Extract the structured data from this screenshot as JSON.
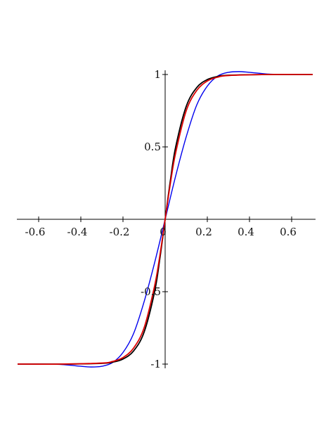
{
  "chart_data": {
    "type": "line",
    "title": "",
    "xlabel": "",
    "ylabel": "",
    "xlim": [
      -0.7,
      0.7
    ],
    "ylim": [
      -1.0,
      1.0
    ],
    "grid": false,
    "legend": "none",
    "x_ticks": [
      {
        "value": -0.6,
        "label": "-0.6"
      },
      {
        "value": -0.4,
        "label": "-0.4"
      },
      {
        "value": -0.2,
        "label": "-0.2"
      },
      {
        "value": 0.0,
        "label": "0"
      },
      {
        "value": 0.2,
        "label": "0.2"
      },
      {
        "value": 0.4,
        "label": "0.4"
      },
      {
        "value": 0.6,
        "label": "0.6"
      }
    ],
    "y_ticks": [
      {
        "value": 1.0,
        "label": "1"
      },
      {
        "value": 0.5,
        "label": "0.5"
      },
      {
        "value": -0.5,
        "label": "-0.5"
      },
      {
        "value": -1.0,
        "label": "-1"
      }
    ],
    "series": [
      {
        "color": "#0000ee",
        "x": [
          -0.7,
          -0.6,
          -0.5,
          -0.4,
          -0.35,
          -0.3,
          -0.25,
          -0.2,
          -0.15,
          -0.1,
          -0.05,
          0.0,
          0.05,
          0.1,
          0.15,
          0.2,
          0.25,
          0.3,
          0.35,
          0.4,
          0.5,
          0.6,
          0.7
        ],
        "y": [
          -1.0,
          -1.0,
          -1.002,
          -1.015,
          -1.02,
          -1.015,
          -0.99,
          -0.92,
          -0.79,
          -0.57,
          -0.3,
          0.0,
          0.3,
          0.57,
          0.79,
          0.92,
          0.99,
          1.015,
          1.02,
          1.015,
          1.002,
          1.0,
          1.0
        ]
      },
      {
        "color": "#000000",
        "x": [
          -0.7,
          -0.5,
          -0.3,
          -0.25,
          -0.2,
          -0.15,
          -0.1,
          -0.05,
          -0.025,
          0.0,
          0.025,
          0.05,
          0.1,
          0.15,
          0.2,
          0.25,
          0.3,
          0.5,
          0.7
        ],
        "y": [
          -1.0,
          -1.0,
          -0.995,
          -0.987,
          -0.965,
          -0.91,
          -0.78,
          -0.5,
          -0.27,
          0.0,
          0.27,
          0.5,
          0.78,
          0.91,
          0.965,
          0.987,
          0.995,
          1.0,
          1.0
        ]
      },
      {
        "color": "#dd0000",
        "x": [
          -0.7,
          -0.5,
          -0.3,
          -0.25,
          -0.2,
          -0.15,
          -0.1,
          -0.05,
          -0.025,
          0.0,
          0.025,
          0.05,
          0.1,
          0.15,
          0.2,
          0.25,
          0.3,
          0.5,
          0.7
        ],
        "y": [
          -1.0,
          -1.0,
          -0.993,
          -0.982,
          -0.955,
          -0.89,
          -0.75,
          -0.46,
          -0.25,
          0.0,
          0.25,
          0.46,
          0.75,
          0.89,
          0.955,
          0.982,
          0.993,
          1.0,
          1.0
        ]
      }
    ]
  }
}
